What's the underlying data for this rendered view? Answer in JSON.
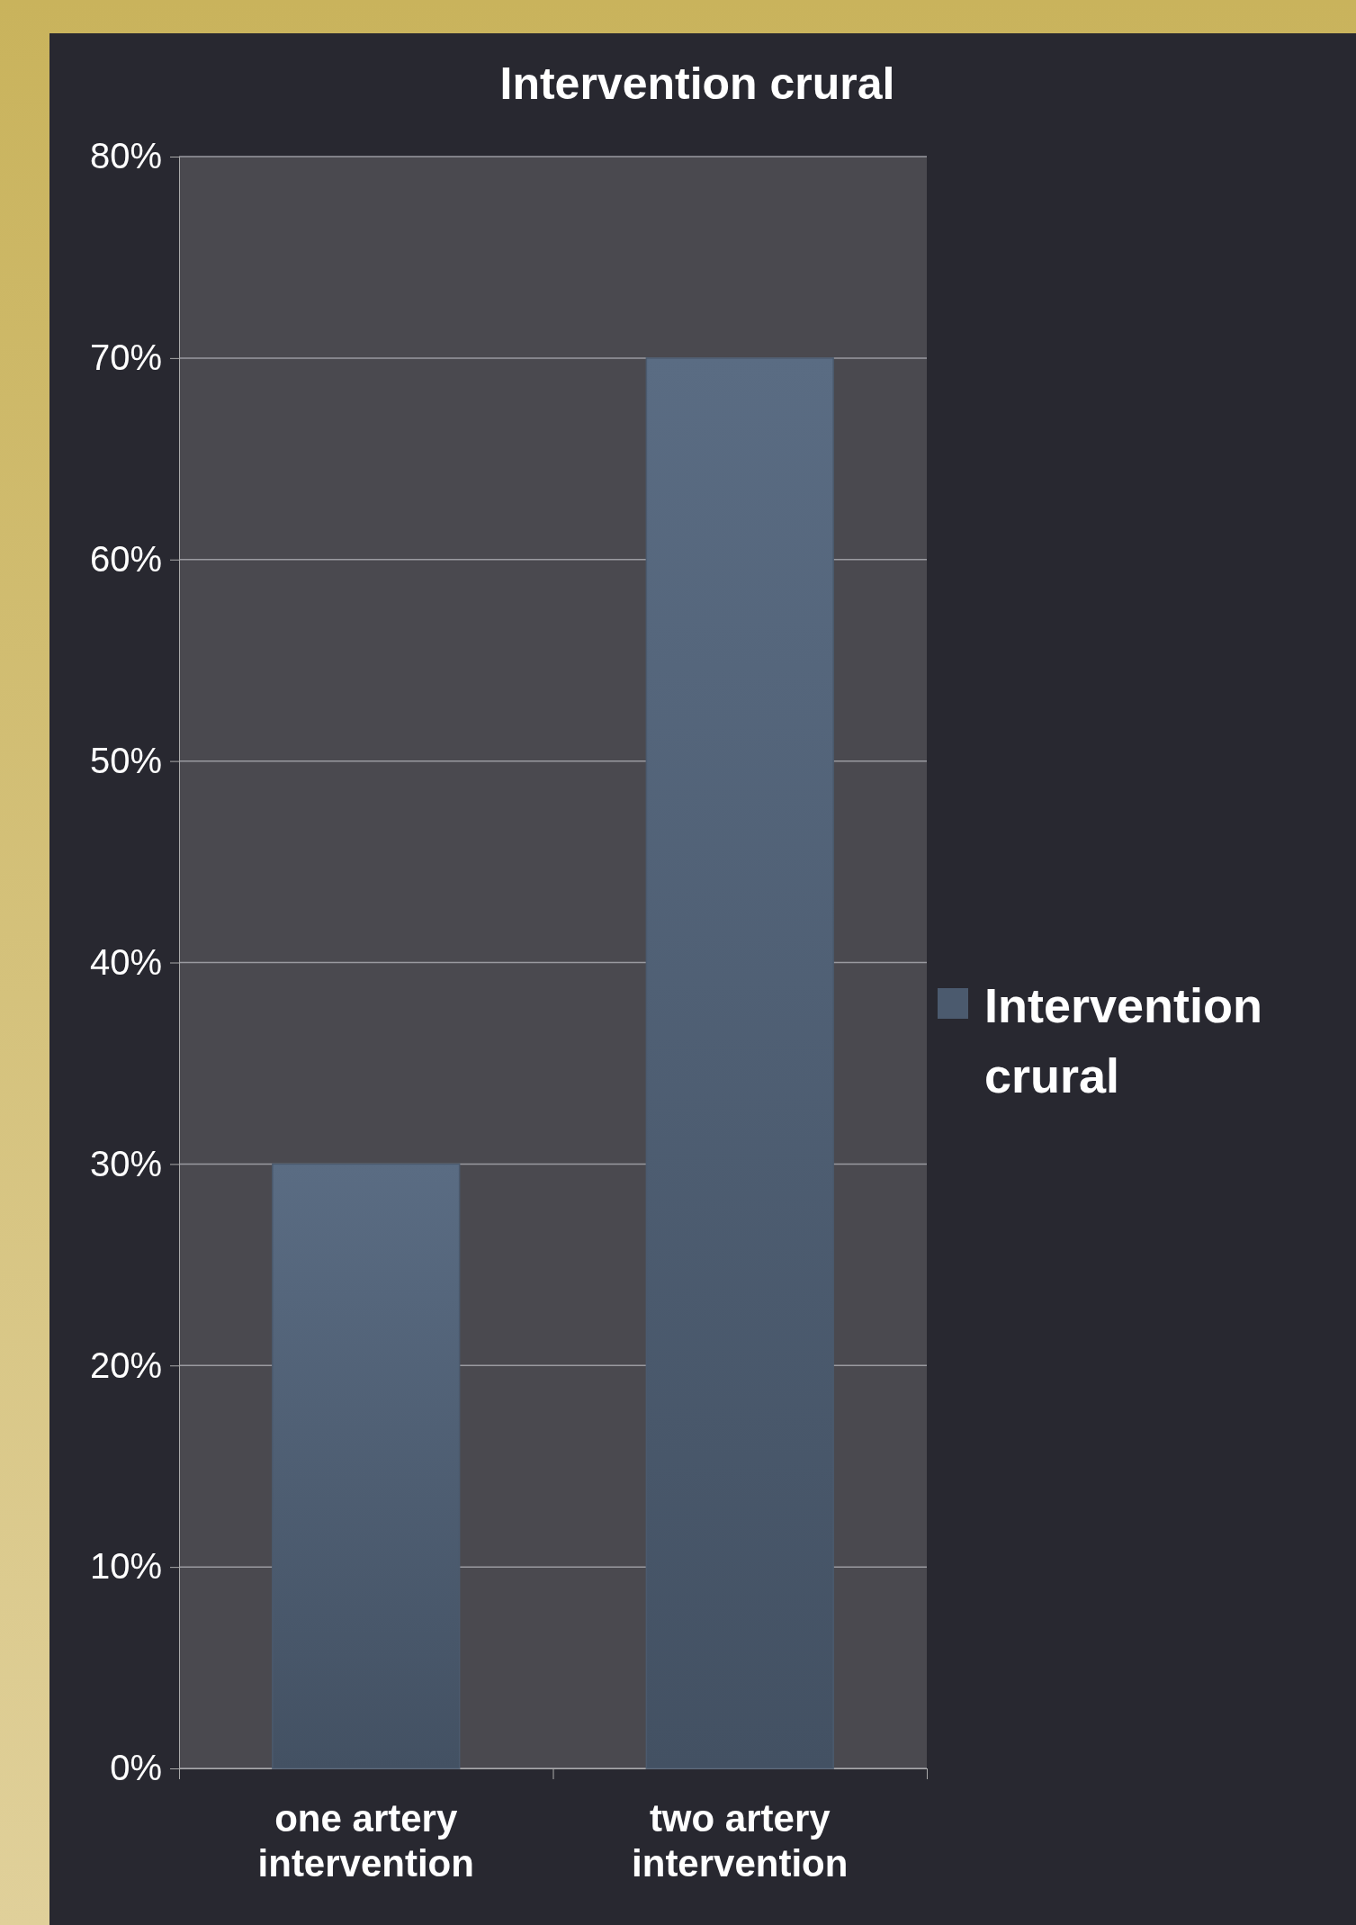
{
  "chart_data": {
    "type": "bar",
    "title": "Intervention crural",
    "categories": [
      "one artery intervention",
      "two artery intervention"
    ],
    "series": [
      {
        "name": "Intervention crural",
        "color": "#4b5a6e",
        "values": [
          30,
          70
        ]
      }
    ],
    "ylim": [
      0,
      80
    ],
    "yticks": [
      {
        "value": 0,
        "label": "0%"
      },
      {
        "value": 10,
        "label": "10%"
      },
      {
        "value": 20,
        "label": "20%"
      },
      {
        "value": 30,
        "label": "30%"
      },
      {
        "value": 40,
        "label": "40%"
      },
      {
        "value": 50,
        "label": "50%"
      },
      {
        "value": 60,
        "label": "60%"
      },
      {
        "value": 70,
        "label": "70%"
      },
      {
        "value": 80,
        "label": "80%"
      }
    ],
    "grid": "y",
    "legend": "right"
  }
}
